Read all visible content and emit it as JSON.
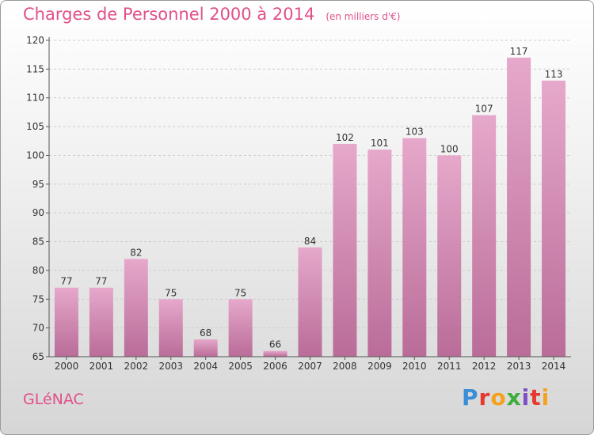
{
  "header": {
    "title": "Charges de Personnel 2000 à 2014",
    "subtitle": "(en milliers d'€)"
  },
  "footer": {
    "commune": "GLéNAC",
    "logo": "Proxiti"
  },
  "colors": {
    "accent": "#e0508a",
    "bar_top": "#e6a8cb",
    "bar_bottom": "#b96c98"
  },
  "chart_data": {
    "type": "bar",
    "title": "Charges de Personnel 2000 à 2014",
    "subtitle": "(en milliers d'€)",
    "categories": [
      "2000",
      "2001",
      "2002",
      "2003",
      "2004",
      "2005",
      "2006",
      "2007",
      "2008",
      "2009",
      "2010",
      "2011",
      "2012",
      "2013",
      "2014"
    ],
    "values": [
      77,
      77,
      82,
      75,
      68,
      75,
      66,
      84,
      102,
      101,
      103,
      100,
      107,
      117,
      113
    ],
    "ylim": [
      65,
      120
    ],
    "yticks": [
      65,
      70,
      75,
      80,
      85,
      90,
      95,
      100,
      105,
      110,
      115,
      120
    ],
    "grid": true,
    "legend": "none"
  }
}
